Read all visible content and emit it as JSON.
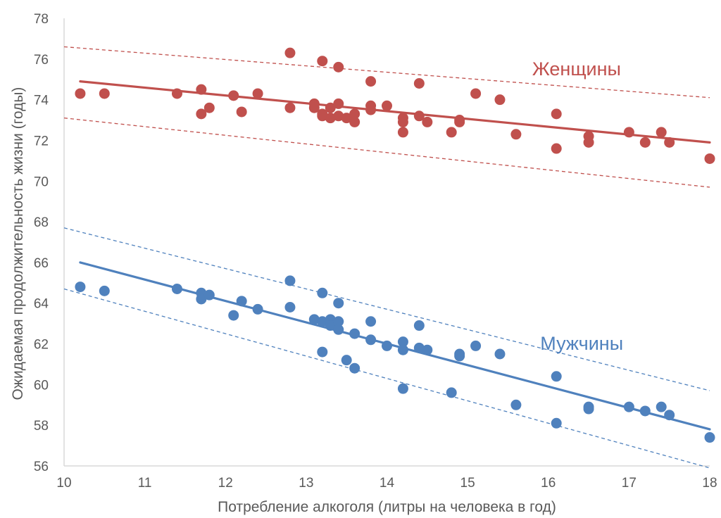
{
  "chart_data": {
    "type": "scatter",
    "xlabel": "Потребление алкоголя (литры на человека в год)",
    "ylabel": "Ожидаемая продолжительность жизни (годы)",
    "xlim": [
      10,
      18
    ],
    "ylim": [
      56,
      78
    ],
    "x_ticks": [
      10,
      11,
      12,
      13,
      14,
      15,
      16,
      17,
      18
    ],
    "y_ticks": [
      56,
      58,
      60,
      62,
      64,
      66,
      68,
      70,
      72,
      74,
      76,
      78
    ],
    "grid": false,
    "legend": "inline labels",
    "series": [
      {
        "name": "Женщины",
        "color": "#c0504d",
        "label_at": [
          15.8,
          75.2
        ],
        "points": [
          [
            10.2,
            74.3
          ],
          [
            10.5,
            74.3
          ],
          [
            11.4,
            74.3
          ],
          [
            11.7,
            74.5
          ],
          [
            11.7,
            73.3
          ],
          [
            11.8,
            73.6
          ],
          [
            12.1,
            74.2
          ],
          [
            12.2,
            73.4
          ],
          [
            12.4,
            74.3
          ],
          [
            12.8,
            76.3
          ],
          [
            12.8,
            73.6
          ],
          [
            13.1,
            73.8
          ],
          [
            13.1,
            73.6
          ],
          [
            13.2,
            75.9
          ],
          [
            13.2,
            73.3
          ],
          [
            13.2,
            73.2
          ],
          [
            13.3,
            73.6
          ],
          [
            13.3,
            73.1
          ],
          [
            13.4,
            75.6
          ],
          [
            13.4,
            73.8
          ],
          [
            13.4,
            73.2
          ],
          [
            13.5,
            73.1
          ],
          [
            13.6,
            73.3
          ],
          [
            13.6,
            72.9
          ],
          [
            13.8,
            74.9
          ],
          [
            13.8,
            73.7
          ],
          [
            13.8,
            73.5
          ],
          [
            14.0,
            73.7
          ],
          [
            14.2,
            73.1
          ],
          [
            14.2,
            72.9
          ],
          [
            14.2,
            72.4
          ],
          [
            14.4,
            74.8
          ],
          [
            14.4,
            73.2
          ],
          [
            14.5,
            72.9
          ],
          [
            14.8,
            72.4
          ],
          [
            14.9,
            73.0
          ],
          [
            14.9,
            72.9
          ],
          [
            15.1,
            74.3
          ],
          [
            15.4,
            74.0
          ],
          [
            15.6,
            72.3
          ],
          [
            16.1,
            73.3
          ],
          [
            16.1,
            71.6
          ],
          [
            16.5,
            72.2
          ],
          [
            16.5,
            71.9
          ],
          [
            17.0,
            72.4
          ],
          [
            17.2,
            71.9
          ],
          [
            17.4,
            72.4
          ],
          [
            17.5,
            71.9
          ],
          [
            18.0,
            71.1
          ]
        ],
        "trend": [
          [
            10.2,
            74.9
          ],
          [
            18.0,
            71.9
          ]
        ],
        "band_upper": [
          [
            10.0,
            76.6
          ],
          [
            18.0,
            74.1
          ]
        ],
        "band_lower": [
          [
            10.0,
            73.1
          ],
          [
            18.0,
            69.7
          ]
        ]
      },
      {
        "name": "Мужчины",
        "color": "#4f81bd",
        "label_at": [
          15.9,
          61.7
        ],
        "points": [
          [
            10.2,
            64.8
          ],
          [
            10.5,
            64.6
          ],
          [
            11.4,
            64.7
          ],
          [
            11.7,
            64.5
          ],
          [
            11.7,
            64.2
          ],
          [
            11.8,
            64.4
          ],
          [
            12.1,
            63.4
          ],
          [
            12.2,
            64.1
          ],
          [
            12.4,
            63.7
          ],
          [
            12.8,
            65.1
          ],
          [
            12.8,
            63.8
          ],
          [
            13.1,
            63.2
          ],
          [
            13.2,
            64.5
          ],
          [
            13.2,
            63.1
          ],
          [
            13.2,
            61.6
          ],
          [
            13.3,
            63.2
          ],
          [
            13.3,
            62.9
          ],
          [
            13.4,
            64.0
          ],
          [
            13.4,
            63.1
          ],
          [
            13.4,
            62.7
          ],
          [
            13.5,
            61.2
          ],
          [
            13.6,
            62.5
          ],
          [
            13.6,
            60.8
          ],
          [
            13.8,
            63.1
          ],
          [
            13.8,
            62.2
          ],
          [
            14.0,
            61.9
          ],
          [
            14.2,
            62.1
          ],
          [
            14.2,
            61.7
          ],
          [
            14.2,
            59.8
          ],
          [
            14.4,
            62.9
          ],
          [
            14.4,
            61.8
          ],
          [
            14.5,
            61.7
          ],
          [
            14.8,
            59.6
          ],
          [
            14.9,
            61.4
          ],
          [
            14.9,
            61.5
          ],
          [
            15.1,
            61.9
          ],
          [
            15.4,
            61.5
          ],
          [
            15.6,
            59.0
          ],
          [
            16.1,
            60.4
          ],
          [
            16.1,
            58.1
          ],
          [
            16.5,
            58.9
          ],
          [
            16.5,
            58.8
          ],
          [
            17.0,
            58.9
          ],
          [
            17.2,
            58.7
          ],
          [
            17.4,
            58.9
          ],
          [
            17.5,
            58.5
          ],
          [
            18.0,
            57.4
          ]
        ],
        "trend": [
          [
            10.2,
            66.0
          ],
          [
            18.0,
            57.8
          ]
        ],
        "band_upper": [
          [
            10.0,
            67.7
          ],
          [
            18.0,
            59.7
          ]
        ],
        "band_lower": [
          [
            10.0,
            64.7
          ],
          [
            18.0,
            55.9
          ]
        ]
      }
    ]
  }
}
